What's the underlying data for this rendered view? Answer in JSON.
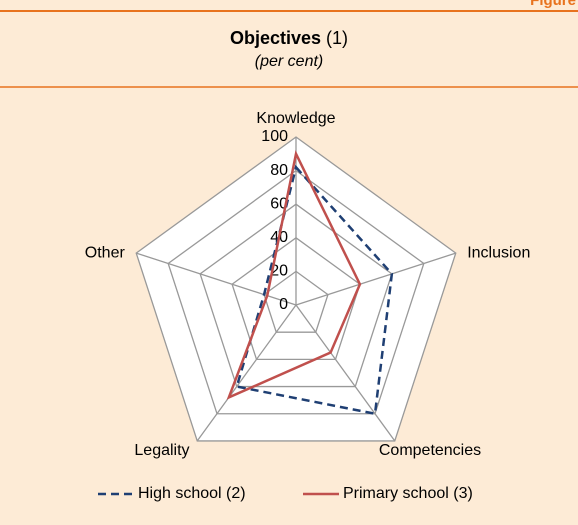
{
  "header": {
    "label": "Figure"
  },
  "chart_data": {
    "type": "radar",
    "title": "Objectives",
    "title_note": "(1)",
    "subtitle": "(per cent)",
    "categories": [
      "Knowledge",
      "Inclusion",
      "Competencies",
      "Legality",
      "Other"
    ],
    "rlim": [
      0,
      100
    ],
    "rticks": [
      0,
      20,
      40,
      60,
      80,
      100
    ],
    "grid": true,
    "series": [
      {
        "name": "High school (2)",
        "color": "#1f3f73",
        "dash": true,
        "values": [
          82,
          60,
          80,
          60,
          20
        ]
      },
      {
        "name": "Primary school (3)",
        "color": "#c0504d",
        "dash": false,
        "values": [
          90,
          40,
          35,
          68,
          18
        ]
      }
    ]
  }
}
